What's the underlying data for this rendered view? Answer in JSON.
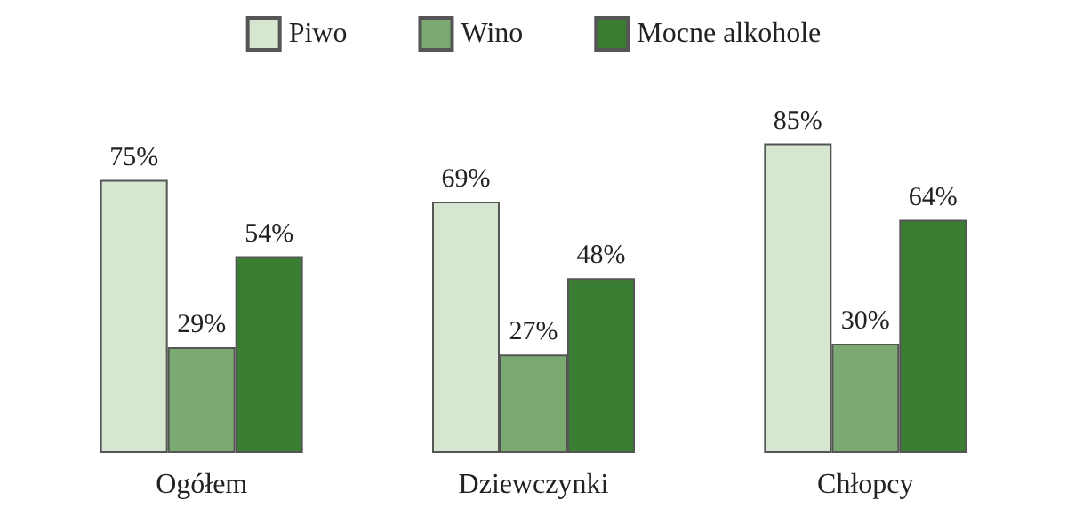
{
  "chart_data": {
    "type": "bar",
    "categories": [
      "Ogółem",
      "Dziewczynki",
      "Chłopcy"
    ],
    "series": [
      {
        "name": "Piwo",
        "color": "#d6e6d0",
        "values": [
          75,
          69,
          85
        ],
        "value_labels": [
          "75%",
          "69%",
          "85%"
        ]
      },
      {
        "name": "Wino",
        "color": "#7aa971",
        "values": [
          29,
          27,
          30
        ],
        "value_labels": [
          "29%",
          "27%",
          "30%"
        ]
      },
      {
        "name": "Mocne alkohole",
        "color": "#3b7e33",
        "values": [
          54,
          48,
          64
        ],
        "value_labels": [
          "54%",
          "48%",
          "64%"
        ]
      }
    ],
    "legend": "top",
    "grid": false
  }
}
